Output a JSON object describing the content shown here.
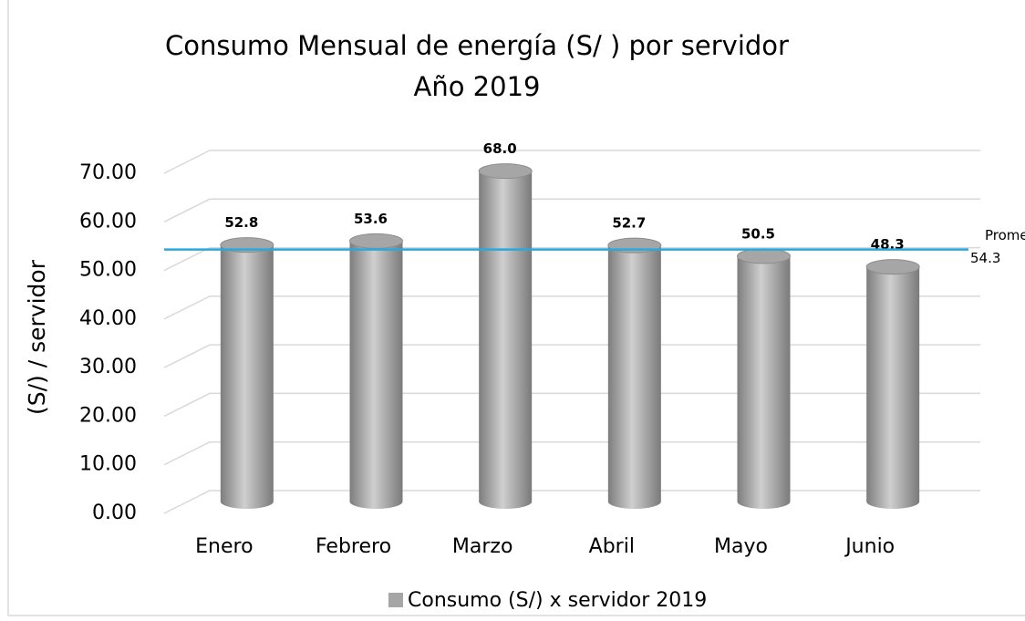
{
  "chart_data": {
    "type": "bar",
    "title": "Consumo Mensual de energía (S/ ) por servidor",
    "subtitle": "Año 2019",
    "y_label": "(S/) / servidor",
    "categories": [
      "Enero",
      "Febrero",
      "Marzo",
      "Abril",
      "Mayo",
      "Junio"
    ],
    "series": [
      {
        "name": "Consumo (S/) x servidor 2019",
        "color": "#a6a6a6",
        "values": [
          52.8,
          53.6,
          68.0,
          52.7,
          50.5,
          48.3
        ],
        "value_labels": [
          "52.8",
          "53.6",
          "68.0",
          "52.7",
          "50.5",
          "48.3"
        ]
      }
    ],
    "ylim": [
      0,
      70
    ],
    "yticks": [
      {
        "value": 0,
        "label": "0.00"
      },
      {
        "value": 10,
        "label": "10.00"
      },
      {
        "value": 20,
        "label": "20.00"
      },
      {
        "value": 30,
        "label": "30.00"
      },
      {
        "value": 40,
        "label": "40.00"
      },
      {
        "value": 50,
        "label": "50.00"
      },
      {
        "value": 60,
        "label": "60.00"
      },
      {
        "value": 70,
        "label": "70.00"
      }
    ],
    "grid": true,
    "reference_line": {
      "text": "Promedio",
      "value": 54.3,
      "value_label": "54.3",
      "color": "#29a8e0"
    },
    "legend": "bottom"
  }
}
